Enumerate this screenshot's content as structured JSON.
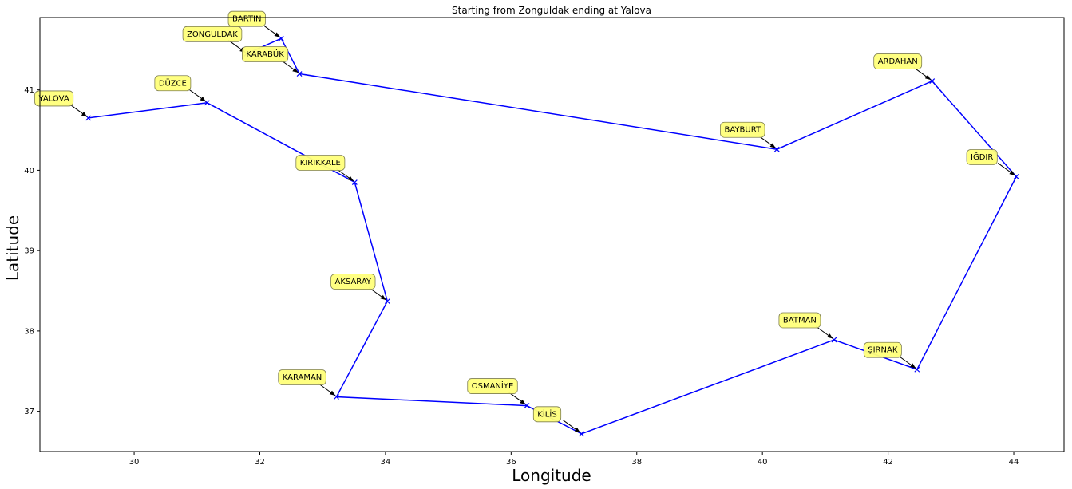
{
  "chart_data": {
    "type": "line",
    "title": "Starting from Zonguldak ending at Yalova",
    "xlabel": "Longitude",
    "ylabel": "Latitude",
    "xlim": [
      28.5,
      44.8
    ],
    "ylim": [
      36.5,
      41.9
    ],
    "xticks": [
      30,
      32,
      34,
      36,
      38,
      40,
      42,
      44
    ],
    "yticks": [
      37,
      38,
      39,
      40,
      41
    ],
    "grid": false,
    "line_color": "#0000ff",
    "label_box_color": "#ffff7a",
    "route": [
      {
        "name": "ZONGULDAK",
        "lon": 31.79,
        "lat": 41.45
      },
      {
        "name": "BARTIN",
        "lon": 32.34,
        "lat": 41.64
      },
      {
        "name": "KARABÜK",
        "lon": 32.63,
        "lat": 41.2
      },
      {
        "name": "BAYBURT",
        "lon": 40.23,
        "lat": 40.26
      },
      {
        "name": "ARDAHAN",
        "lon": 42.7,
        "lat": 41.11
      },
      {
        "name": "IĞDIR",
        "lon": 44.04,
        "lat": 39.92
      },
      {
        "name": "ŞIRNAK",
        "lon": 42.46,
        "lat": 37.52
      },
      {
        "name": "BATMAN",
        "lon": 41.14,
        "lat": 37.89
      },
      {
        "name": "KİLİS",
        "lon": 37.12,
        "lat": 36.72
      },
      {
        "name": "OSMANİYE",
        "lon": 36.25,
        "lat": 37.07
      },
      {
        "name": "KARAMAN",
        "lon": 33.22,
        "lat": 37.18
      },
      {
        "name": "AKSARAY",
        "lon": 34.03,
        "lat": 38.37
      },
      {
        "name": "KIRIKKALE",
        "lon": 33.51,
        "lat": 39.85
      },
      {
        "name": "DÜZCE",
        "lon": 31.16,
        "lat": 40.84
      },
      {
        "name": "YALOVA",
        "lon": 29.27,
        "lat": 40.65
      }
    ]
  }
}
